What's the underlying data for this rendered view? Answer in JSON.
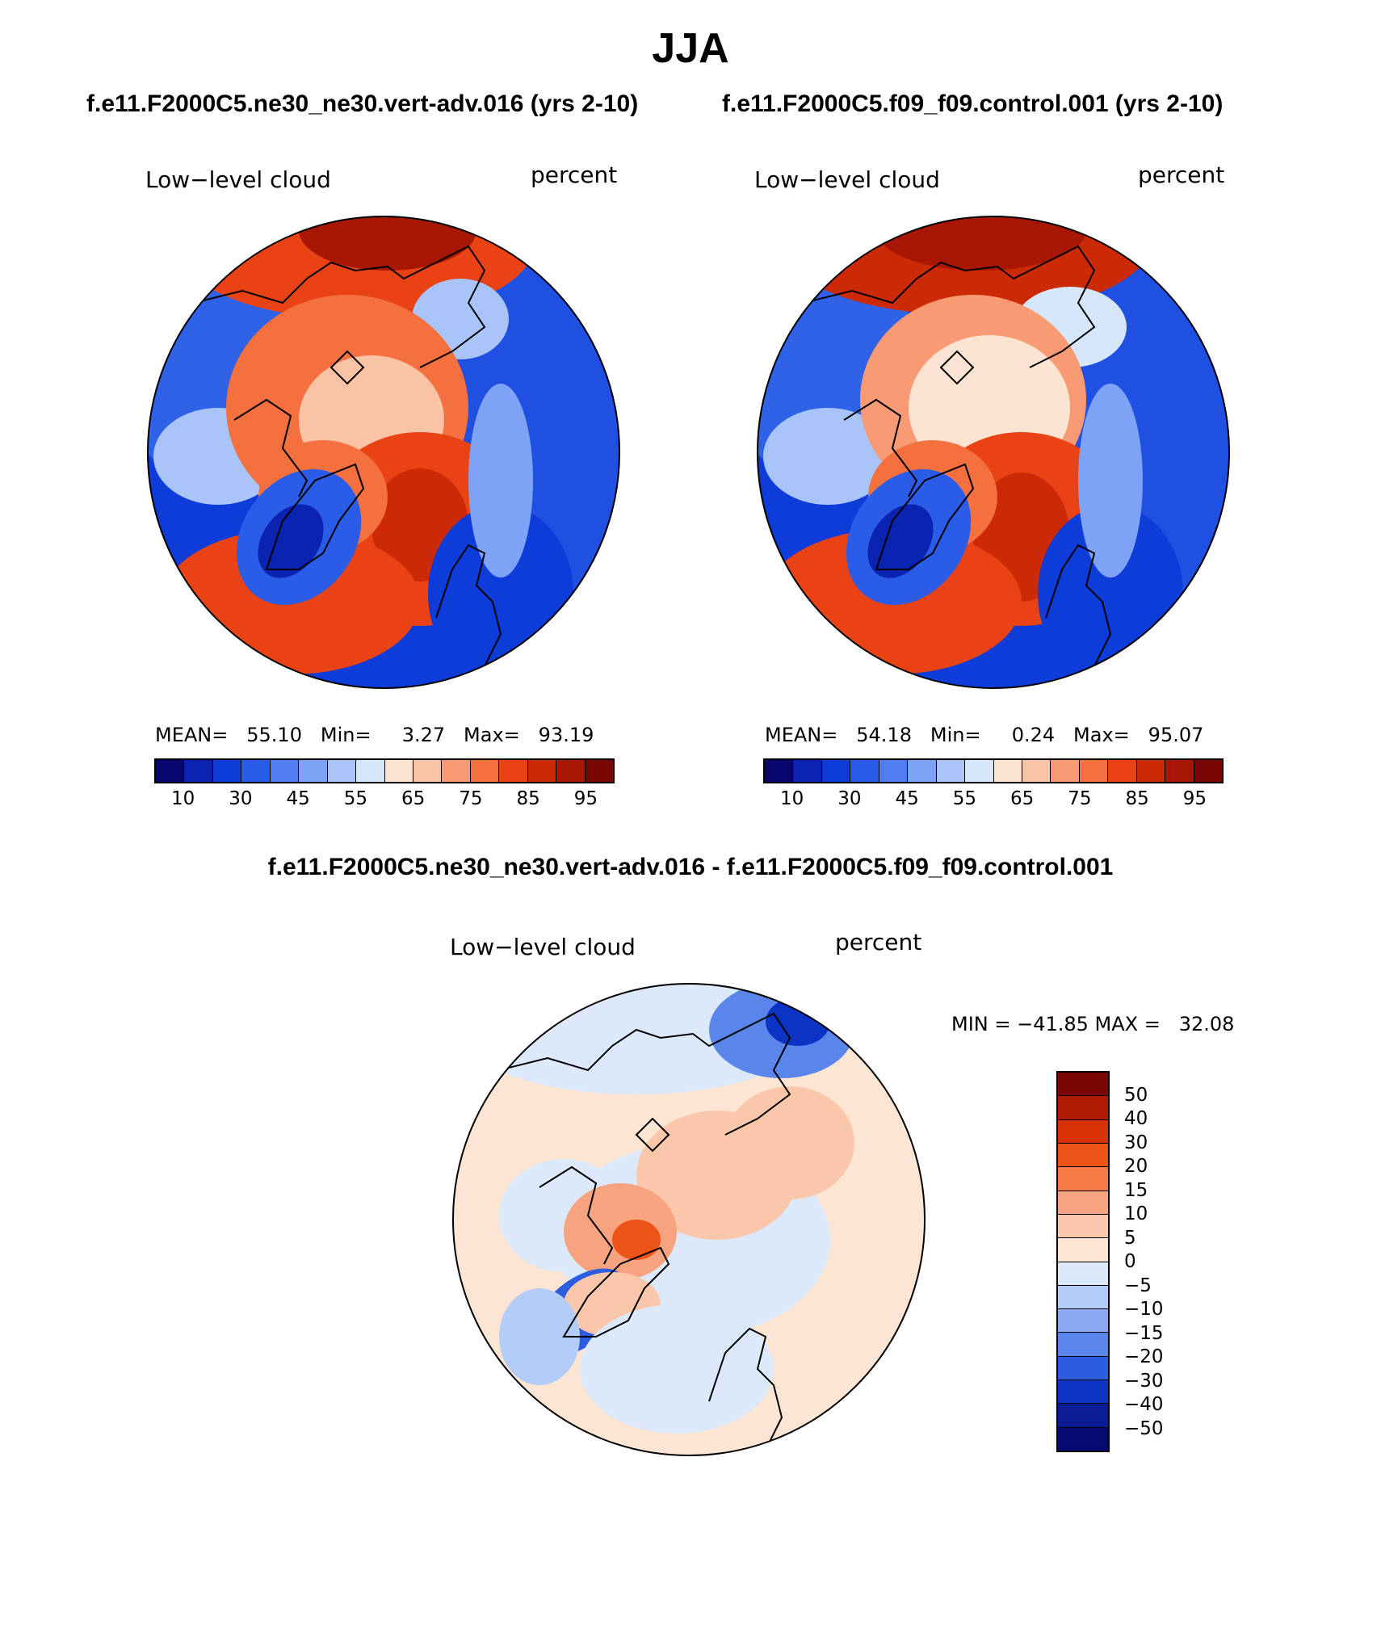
{
  "title": "JJA",
  "panels": [
    {
      "case": "f.e11.F2000C5.ne30_ne30.vert-adv.016 (yrs 2-10)",
      "variable": "Low−level cloud",
      "units": "percent",
      "mean_label": "MEAN=",
      "mean": "55.10",
      "min_label": "Min=",
      "min": "3.27",
      "max_label": "Max=",
      "max": "93.19"
    },
    {
      "case": "f.e11.F2000C5.f09_f09.control.001 (yrs 2-10)",
      "variable": "Low−level cloud",
      "units": "percent",
      "mean_label": "MEAN=",
      "mean": "54.18",
      "min_label": "Min=",
      "min": "0.24",
      "max_label": "Max=",
      "max": "95.07"
    }
  ],
  "colorbar": {
    "ticks": [
      "10",
      "30",
      "45",
      "55",
      "65",
      "75",
      "85",
      "95"
    ],
    "colors": [
      "#06066e",
      "#0a23b0",
      "#0d3cd8",
      "#2a5ce8",
      "#4e7ef0",
      "#7ea2f5",
      "#a9c4f8",
      "#d6e6fb",
      "#fde4d2",
      "#fbc3a6",
      "#f89b74",
      "#f4703f",
      "#e94315",
      "#cc2a06",
      "#a81703",
      "#7a0606"
    ]
  },
  "difference": {
    "title": "f.e11.F2000C5.ne30_ne30.vert-adv.016 - f.e11.F2000C5.f09_f09.control.001",
    "variable": "Low−level cloud",
    "units": "percent",
    "min_max_text": "MIN = −41.85 MAX =   32.08",
    "colorbar_ticks": [
      "50",
      "40",
      "30",
      "20",
      "15",
      "10",
      "5",
      "0",
      "−5",
      "−10",
      "−15",
      "−20",
      "−30",
      "−40",
      "−50"
    ],
    "colors": [
      "#7a0606",
      "#b01b04",
      "#d83208",
      "#ec5418",
      "#f57a46",
      "#f8a37f",
      "#fbc7aa",
      "#fde5d3",
      "#dce9fb",
      "#b4ccf8",
      "#8aabf3",
      "#5a86ec",
      "#2c5de0",
      "#0b34c4",
      "#0a1c96",
      "#060a70"
    ]
  },
  "map_colors": {
    "deep_blue": "#0a3fd6",
    "blue": "#2f62e6",
    "mid_blue": "#7aa0f3",
    "light_blue": "#d8e6fb",
    "peach": "#fbd0b6",
    "orange": "#f4703f",
    "red": "#dc3a0c",
    "dark_red": "#a81703"
  }
}
